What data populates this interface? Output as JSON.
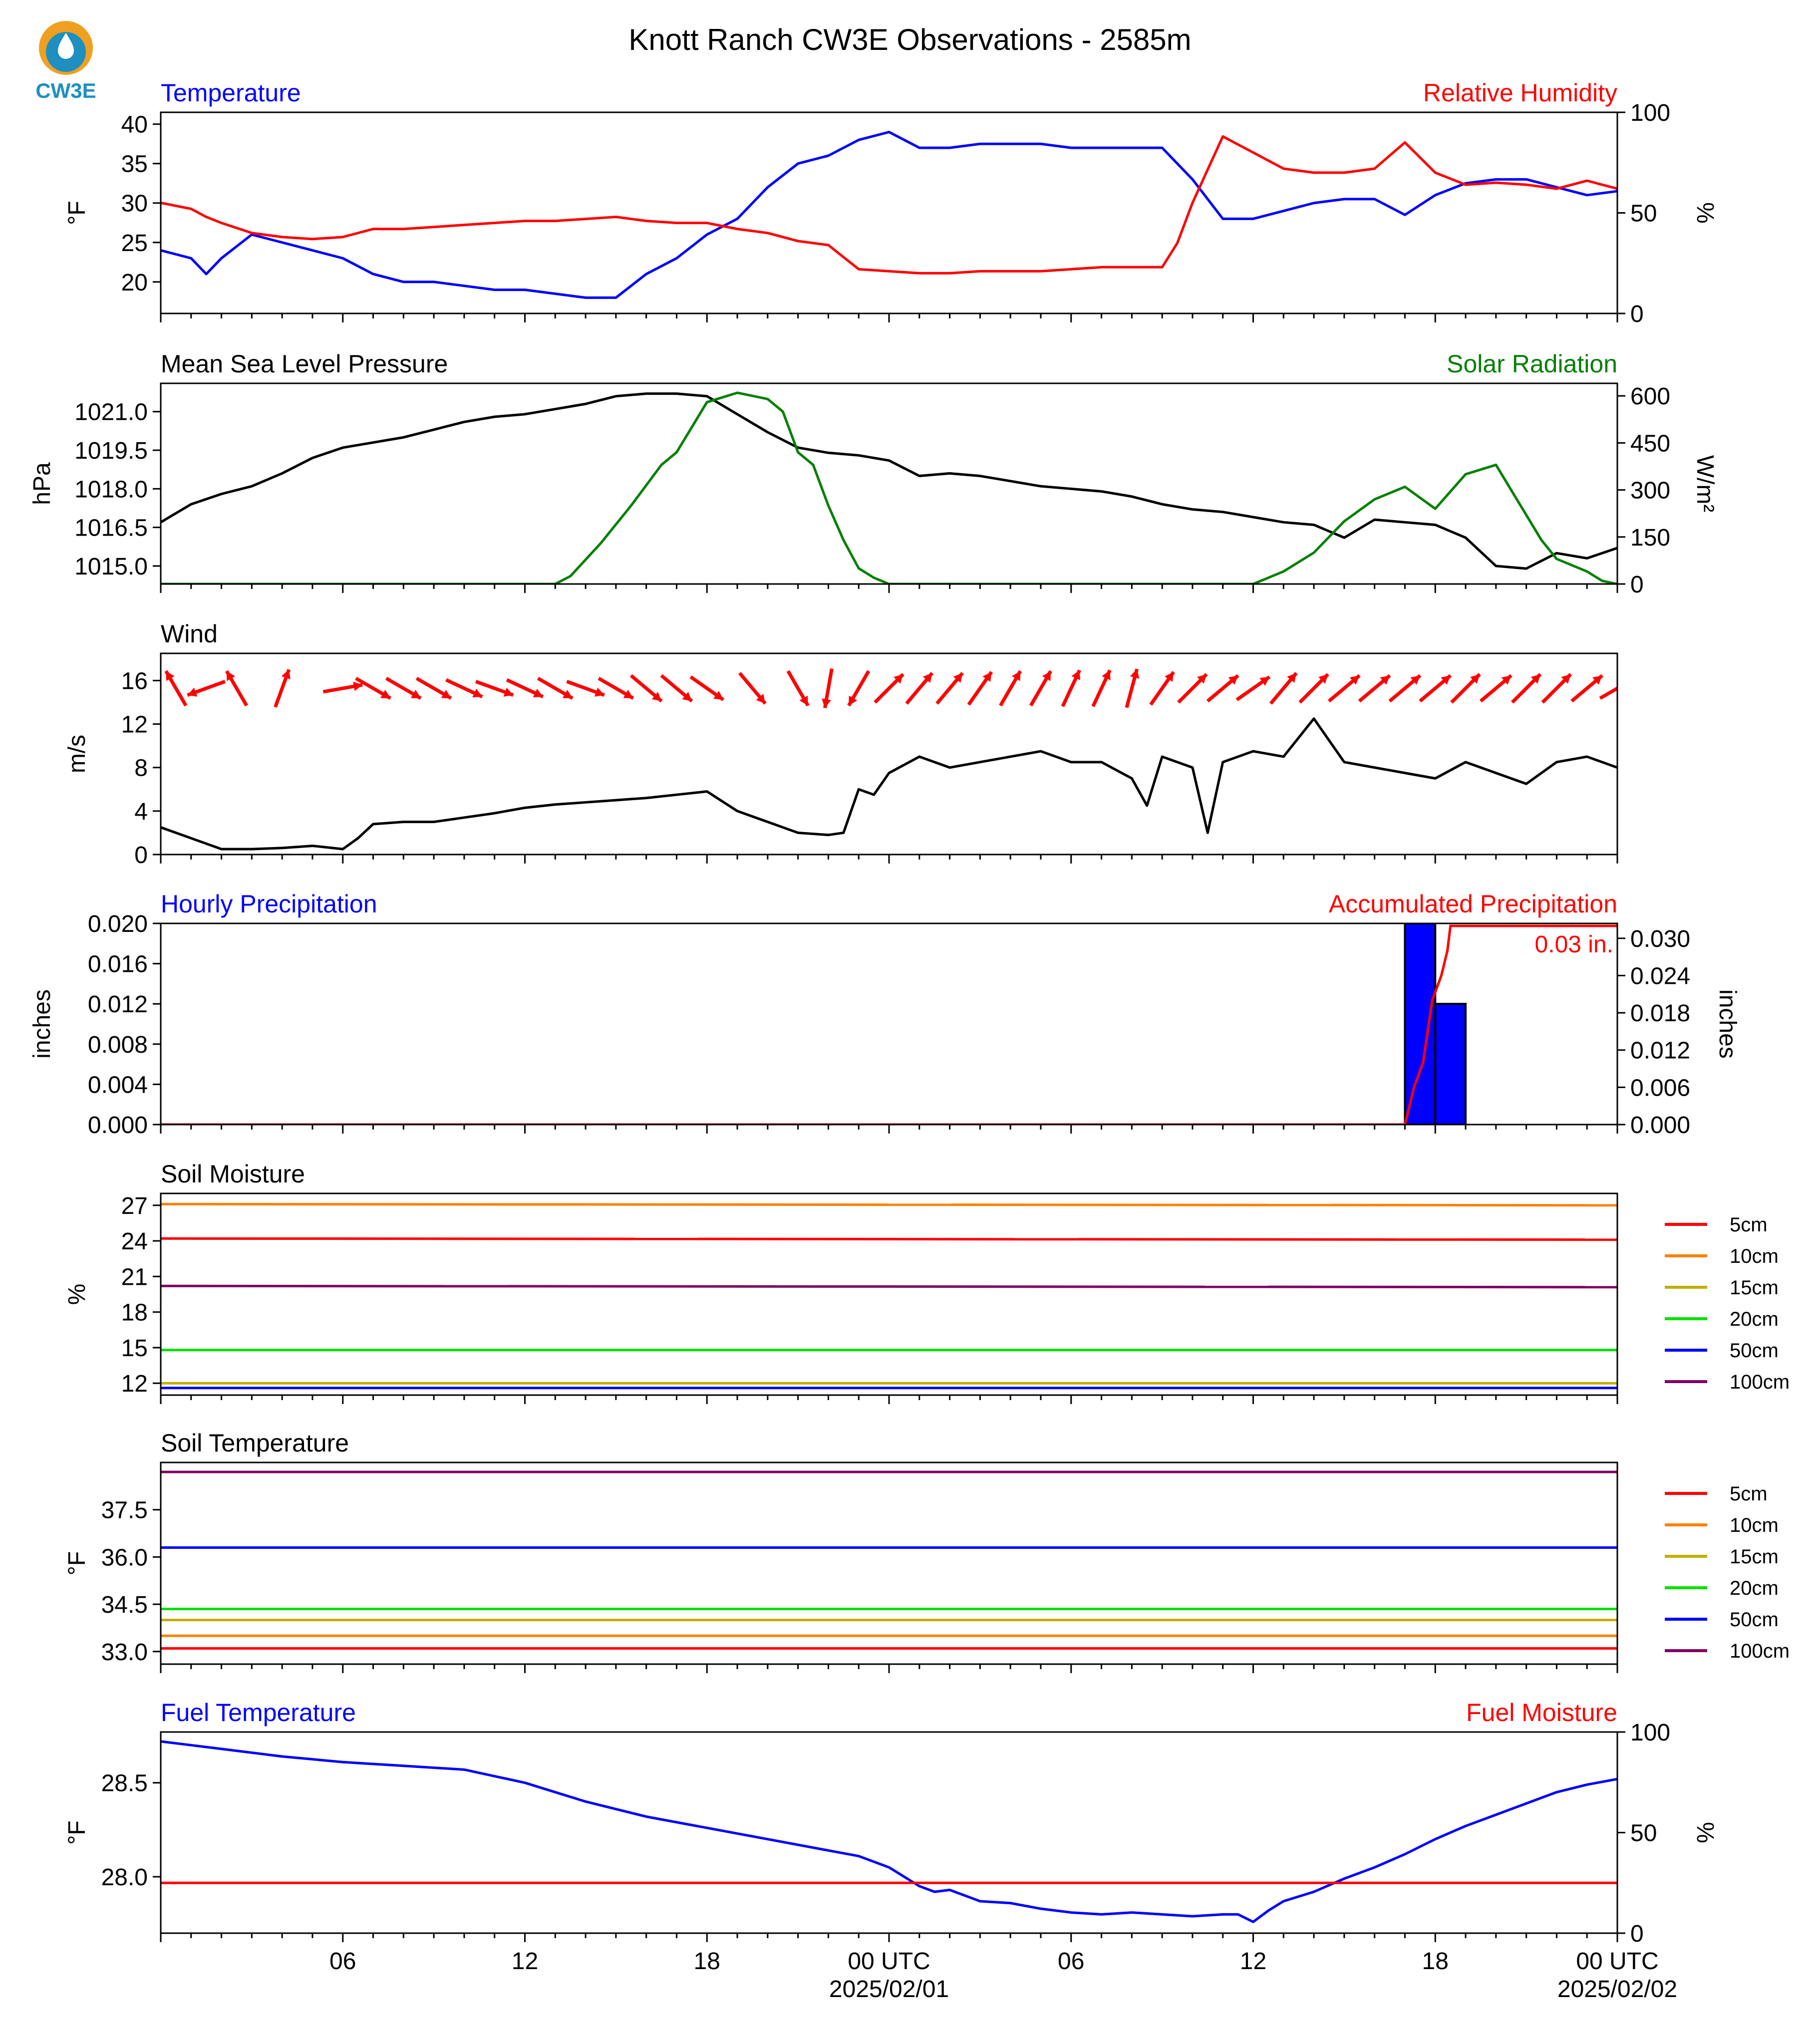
{
  "title": "Knott Ranch CW3E Observations - 2585m",
  "logo": {
    "text": "CW3E",
    "colors": {
      "ring": "#f0a020",
      "water": "#1d8fc0",
      "text": "#1d8fc0"
    }
  },
  "colors": {
    "temperature": "#0000ff",
    "humidity": "#ff0000",
    "pressure": "#000000",
    "solar": "#008000",
    "wind": "#000000",
    "barbs": "#ff0000",
    "bars": "#0000ff",
    "accum": "#ff0000",
    "fuel_temp": "#0000ff",
    "fuel_moist": "#ff0000"
  },
  "x_axis": {
    "tick_labels": [
      {
        "h": 6,
        "line1": "06",
        "line2": ""
      },
      {
        "h": 12,
        "line1": "12",
        "line2": ""
      },
      {
        "h": 18,
        "line1": "18",
        "line2": ""
      },
      {
        "h": 24,
        "line1": "00 UTC",
        "line2": "2025/02/01"
      },
      {
        "h": 30,
        "line1": "06",
        "line2": ""
      },
      {
        "h": 36,
        "line1": "12",
        "line2": ""
      },
      {
        "h": 42,
        "line1": "18",
        "line2": ""
      },
      {
        "h": 48,
        "line1": "00 UTC",
        "line2": "2025/02/02"
      }
    ]
  },
  "legend_depths": [
    {
      "label": "5cm",
      "color": "#ff0000"
    },
    {
      "label": "10cm",
      "color": "#ff8000"
    },
    {
      "label": "15cm",
      "color": "#c0b000"
    },
    {
      "label": "20cm",
      "color": "#00e000"
    },
    {
      "label": "50cm",
      "color": "#0000ff"
    },
    {
      "label": "100cm",
      "color": "#800060"
    }
  ],
  "chart_data": [
    {
      "type": "line",
      "left_title": "Temperature",
      "right_title": "Relative Humidity",
      "ylabel_left": "°F",
      "ylabel_right": "%",
      "yticks_left": [
        "40",
        "35",
        "30",
        "25",
        "20"
      ],
      "yticks_right": [
        "100",
        "50",
        "0"
      ],
      "ylim_left": [
        16,
        41.5
      ],
      "ylim_right": [
        0,
        100
      ],
      "series": [
        {
          "name": "Temperature",
          "axis": "left",
          "x": [
            0,
            1,
            1.5,
            2,
            3,
            4,
            5,
            6,
            7,
            8,
            9,
            10,
            11,
            12,
            13,
            14,
            15,
            16,
            17,
            18,
            19,
            20,
            21,
            22,
            23,
            24,
            25,
            26,
            27,
            28,
            29,
            30,
            31,
            32,
            33,
            33.5,
            34,
            35,
            36,
            37,
            38,
            39,
            40,
            41,
            42,
            43,
            44,
            45,
            46,
            47,
            48
          ],
          "y": [
            24,
            23,
            21,
            23,
            26,
            25,
            24,
            23,
            21,
            20,
            20,
            19.5,
            19,
            19,
            18.5,
            18,
            18,
            21,
            23,
            26,
            28,
            32,
            35,
            36,
            38,
            39,
            37,
            37,
            37.5,
            37.5,
            37.5,
            37,
            37,
            37,
            37,
            35,
            33,
            28,
            28,
            29,
            30,
            30.5,
            30.5,
            28.5,
            31,
            32.5,
            33,
            33,
            32,
            31,
            31.5
          ]
        },
        {
          "name": "Relative Humidity",
          "axis": "right",
          "x": [
            0,
            1,
            1.5,
            2,
            3,
            4,
            5,
            6,
            7,
            8,
            9,
            10,
            11,
            12,
            13,
            14,
            15,
            16,
            17,
            18,
            19,
            20,
            21,
            22,
            23,
            24,
            25,
            26,
            27,
            28,
            29,
            30,
            31,
            32,
            33,
            33.5,
            34,
            35,
            36,
            37,
            38,
            39,
            40,
            41,
            42,
            43,
            44,
            45,
            46,
            47,
            48
          ],
          "y": [
            55,
            52,
            48,
            45,
            40,
            38,
            37,
            38,
            42,
            42,
            43,
            44,
            45,
            46,
            46,
            47,
            48,
            46,
            45,
            45,
            42,
            40,
            36,
            34,
            22,
            21,
            20,
            20,
            21,
            21,
            21,
            22,
            23,
            23,
            23,
            35,
            55,
            88,
            80,
            72,
            70,
            70,
            72,
            85,
            70,
            64,
            65,
            64,
            62,
            66,
            62
          ]
        }
      ]
    },
    {
      "type": "line",
      "left_title": "Mean Sea Level Pressure",
      "right_title": "Solar Radiation",
      "ylabel_left": "hPa",
      "ylabel_right": "W/m²",
      "yticks_left": [
        "1021.0",
        "1019.5",
        "1018.0",
        "1016.5",
        "1015.0"
      ],
      "yticks_right": [
        "600",
        "450",
        "300",
        "150",
        "0"
      ],
      "ylim_left": [
        1014.3,
        1022.1
      ],
      "ylim_right": [
        0,
        640
      ],
      "series": [
        {
          "name": "Mean Sea Level Pressure",
          "axis": "left",
          "x": [
            0,
            1,
            2,
            3,
            4,
            5,
            6,
            7,
            8,
            9,
            10,
            11,
            12,
            13,
            14,
            15,
            16,
            17,
            18,
            19,
            20,
            21,
            22,
            23,
            24,
            25,
            26,
            27,
            28,
            29,
            30,
            31,
            32,
            33,
            34,
            35,
            36,
            37,
            38,
            39,
            40,
            41,
            42,
            43,
            44,
            45,
            46,
            47,
            48
          ],
          "y": [
            1016.7,
            1017.4,
            1017.8,
            1018.1,
            1018.6,
            1019.2,
            1019.6,
            1019.8,
            1020.0,
            1020.3,
            1020.6,
            1020.8,
            1020.9,
            1021.1,
            1021.3,
            1021.6,
            1021.7,
            1021.7,
            1021.6,
            1020.9,
            1020.2,
            1019.6,
            1019.4,
            1019.3,
            1019.1,
            1018.5,
            1018.6,
            1018.5,
            1018.3,
            1018.1,
            1018.0,
            1017.9,
            1017.7,
            1017.4,
            1017.2,
            1017.1,
            1016.9,
            1016.7,
            1016.6,
            1016.1,
            1016.8,
            1016.7,
            1016.6,
            1016.1,
            1015.0,
            1014.9,
            1015.5,
            1015.3,
            1015.7
          ]
        },
        {
          "name": "Solar Radiation",
          "axis": "right",
          "x": [
            0,
            13,
            13.5,
            14.5,
            15.5,
            16.5,
            17,
            18,
            19,
            20,
            20.5,
            21,
            21.5,
            22,
            22.5,
            23,
            23.5,
            24,
            35,
            36,
            37,
            38,
            39,
            40,
            41,
            42,
            43,
            44,
            44.5,
            45,
            45.5,
            46,
            46.5,
            47,
            47.5,
            48
          ],
          "y": [
            0,
            0,
            25,
            130,
            250,
            380,
            420,
            580,
            610,
            590,
            550,
            420,
            380,
            250,
            140,
            50,
            20,
            0,
            0,
            0,
            40,
            100,
            200,
            270,
            310,
            240,
            350,
            380,
            300,
            220,
            140,
            80,
            60,
            40,
            10,
            0
          ]
        }
      ]
    },
    {
      "type": "line",
      "left_title": "Wind",
      "ylabel_left": "m/s",
      "yticks_left": [
        "16",
        "12",
        "8",
        "4",
        "0"
      ],
      "ylim_left": [
        0,
        18.5
      ],
      "series": [
        {
          "name": "Wind",
          "x": [
            0,
            1,
            2,
            3,
            4,
            5,
            6,
            6.5,
            7,
            8,
            9,
            10,
            11,
            12,
            13,
            14,
            15,
            16,
            17,
            18,
            19,
            20,
            21,
            22,
            22.5,
            23,
            23.5,
            24,
            25,
            26,
            27,
            28,
            29,
            30,
            31,
            32,
            32.5,
            33,
            34,
            34.5,
            35,
            36,
            37,
            38,
            39,
            40,
            41,
            42,
            43,
            44,
            45,
            46,
            47,
            48
          ],
          "y": [
            2.5,
            1.5,
            0.5,
            0.5,
            0.6,
            0.8,
            0.5,
            1.5,
            2.8,
            3.0,
            3.0,
            3.4,
            3.8,
            4.3,
            4.6,
            4.8,
            5.0,
            5.2,
            5.5,
            5.8,
            4.0,
            3.0,
            2.0,
            1.8,
            2.0,
            6.0,
            5.5,
            7.5,
            9.0,
            8.0,
            8.5,
            9.0,
            9.5,
            8.5,
            8.5,
            7.0,
            4.5,
            9.0,
            8.0,
            2.0,
            8.5,
            9.5,
            9.0,
            12.5,
            8.5,
            8.0,
            7.5,
            7.0,
            8.5,
            7.5,
            6.5,
            8.5,
            9.0,
            8.0
          ]
        }
      ],
      "barbs": {
        "x": [
          0.5,
          1.5,
          2.5,
          4,
          6,
          7,
          8,
          9,
          10,
          11,
          12,
          13,
          14,
          15,
          16,
          17,
          18,
          19.5,
          21,
          22,
          23,
          24,
          25,
          26,
          27,
          28,
          29,
          30,
          31,
          32,
          33,
          34,
          35,
          36,
          37,
          38,
          39,
          40,
          41,
          42,
          43,
          44,
          45,
          46,
          47,
          48
        ],
        "dir_deg": [
          120,
          200,
          120,
          70,
          10,
          330,
          330,
          330,
          335,
          340,
          335,
          330,
          340,
          330,
          320,
          320,
          325,
          310,
          300,
          260,
          240,
          45,
          50,
          50,
          55,
          60,
          60,
          65,
          65,
          75,
          55,
          45,
          40,
          35,
          50,
          45,
          40,
          40,
          40,
          40,
          45,
          40,
          45,
          45,
          40,
          30
        ]
      }
    },
    {
      "type": "bar",
      "left_title": "Hourly Precipitation",
      "right_title": "Accumulated Precipitation",
      "ylabel_left": "inches",
      "ylabel_right": "inches",
      "yticks_left": [
        "0.020",
        "0.016",
        "0.012",
        "0.008",
        "0.004",
        "0.000"
      ],
      "yticks_right": [
        "0.030",
        "0.024",
        "0.018",
        "0.012",
        "0.006",
        "0.000"
      ],
      "ylim_left": [
        0,
        0.02
      ],
      "ylim_right": [
        0,
        0.0324
      ],
      "series": [
        {
          "name": "Hourly Precipitation",
          "axis": "left",
          "x": [
            41.5,
            42.5
          ],
          "values": [
            0.02,
            0.012
          ]
        },
        {
          "name": "Accumulated Precipitation",
          "axis": "right",
          "x": [
            0,
            41,
            41.3,
            41.6,
            41.9,
            42.2,
            42.4,
            42.5,
            48
          ],
          "y": [
            0,
            0,
            0.006,
            0.01,
            0.02,
            0.024,
            0.028,
            0.032,
            0.032
          ]
        }
      ],
      "annotation": "0.03 in."
    },
    {
      "type": "line",
      "left_title": "Soil Moisture",
      "ylabel_left": "%",
      "yticks_left": [
        "27",
        "24",
        "21",
        "18",
        "15",
        "12"
      ],
      "ylim_left": [
        11,
        28
      ],
      "series": [
        {
          "name": "5cm",
          "x": [
            0,
            48
          ],
          "y": [
            24.2,
            24.1
          ]
        },
        {
          "name": "10cm",
          "x": [
            0,
            48
          ],
          "y": [
            27.1,
            27.0
          ]
        },
        {
          "name": "15cm",
          "x": [
            0,
            48
          ],
          "y": [
            12.0,
            12.0
          ]
        },
        {
          "name": "20cm",
          "x": [
            0,
            48
          ],
          "y": [
            14.8,
            14.8
          ]
        },
        {
          "name": "50cm",
          "x": [
            0,
            48
          ],
          "y": [
            11.6,
            11.6
          ]
        },
        {
          "name": "100cm",
          "x": [
            0,
            48
          ],
          "y": [
            20.2,
            20.1
          ]
        }
      ]
    },
    {
      "type": "line",
      "left_title": "Soil Temperature",
      "ylabel_left": "°F",
      "yticks_left": [
        "37.5",
        "36.0",
        "34.5",
        "33.0"
      ],
      "ylim_left": [
        32.6,
        39.0
      ],
      "series": [
        {
          "name": "5cm",
          "x": [
            0,
            48
          ],
          "y": [
            33.1,
            33.1
          ]
        },
        {
          "name": "10cm",
          "x": [
            0,
            48
          ],
          "y": [
            33.5,
            33.5
          ]
        },
        {
          "name": "15cm",
          "x": [
            0,
            48
          ],
          "y": [
            34.0,
            34.0
          ]
        },
        {
          "name": "20cm",
          "x": [
            0,
            48
          ],
          "y": [
            34.35,
            34.35
          ]
        },
        {
          "name": "50cm",
          "x": [
            0,
            48
          ],
          "y": [
            36.3,
            36.3
          ]
        },
        {
          "name": "100cm",
          "x": [
            0,
            48
          ],
          "y": [
            38.7,
            38.7
          ]
        }
      ]
    },
    {
      "type": "line",
      "left_title": "Fuel Temperature",
      "right_title": "Fuel Moisture",
      "ylabel_left": "°F",
      "ylabel_right": "%",
      "yticks_left": [
        "28.5",
        "28.0"
      ],
      "yticks_right": [
        "100",
        "50",
        "0"
      ],
      "ylim_left": [
        27.7,
        28.77
      ],
      "ylim_right": [
        0,
        100
      ],
      "series": [
        {
          "name": "Fuel Temperature",
          "axis": "left",
          "x": [
            0,
            2,
            4,
            6,
            8,
            10,
            12,
            14,
            16,
            18,
            20,
            22,
            23,
            24,
            25,
            25.5,
            26,
            27,
            28,
            29,
            30,
            31,
            32,
            33,
            34,
            35,
            35.5,
            36,
            36.5,
            37,
            38,
            39,
            40,
            41,
            42,
            43,
            44,
            45,
            46,
            47,
            48
          ],
          "y": [
            28.72,
            28.68,
            28.64,
            28.61,
            28.59,
            28.57,
            28.5,
            28.4,
            28.32,
            28.26,
            28.2,
            28.14,
            28.11,
            28.05,
            27.95,
            27.92,
            27.93,
            27.87,
            27.86,
            27.83,
            27.81,
            27.8,
            27.81,
            27.8,
            27.79,
            27.8,
            27.8,
            27.76,
            27.82,
            27.87,
            27.92,
            27.99,
            28.05,
            28.12,
            28.2,
            28.27,
            28.33,
            28.39,
            28.45,
            28.49,
            28.52
          ]
        },
        {
          "name": "Fuel Moisture",
          "axis": "right",
          "x": [
            0,
            48
          ],
          "y": [
            25,
            25
          ]
        }
      ]
    }
  ]
}
